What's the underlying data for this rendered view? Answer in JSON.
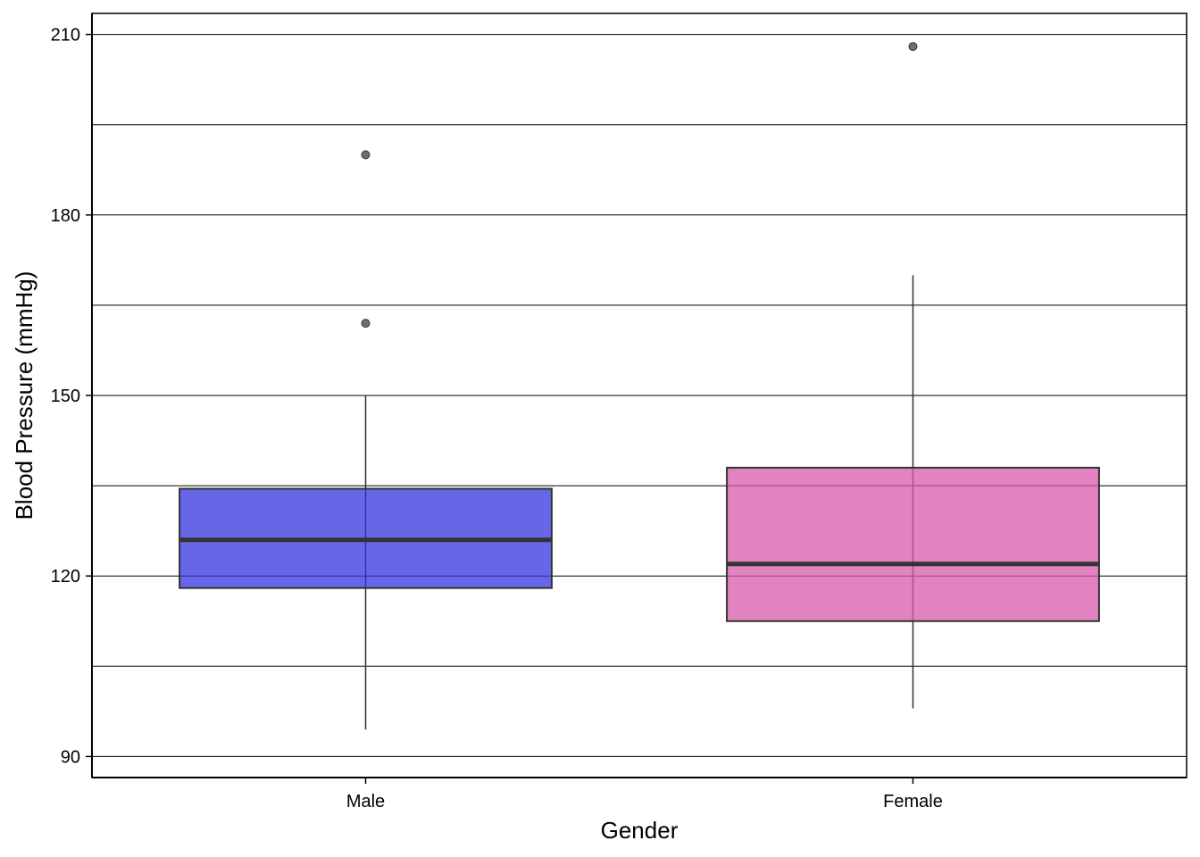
{
  "chart_data": {
    "type": "boxplot",
    "title": "",
    "xlabel": "Gender",
    "ylabel": "Blood Pressure (mmHg)",
    "ylim": [
      86.5,
      213.5
    ],
    "y_major_ticks": [
      90,
      120,
      150,
      180,
      210
    ],
    "y_gridlines": [
      90,
      105,
      120,
      135,
      150,
      165,
      180,
      195,
      210
    ],
    "grid": true,
    "categories": [
      "Male",
      "Female"
    ],
    "boxes": [
      {
        "category": "Male",
        "whisker_low": 94.5,
        "q1": 118,
        "median": 126,
        "q3": 134.5,
        "whisker_high": 150,
        "outliers": [
          162,
          190
        ],
        "fill": "#3333dd"
      },
      {
        "category": "Female",
        "whisker_low": 98,
        "q1": 112.5,
        "median": 122,
        "q3": 138,
        "whisker_high": 170,
        "outliers": [
          208
        ],
        "fill": "#d65aa8"
      }
    ]
  }
}
